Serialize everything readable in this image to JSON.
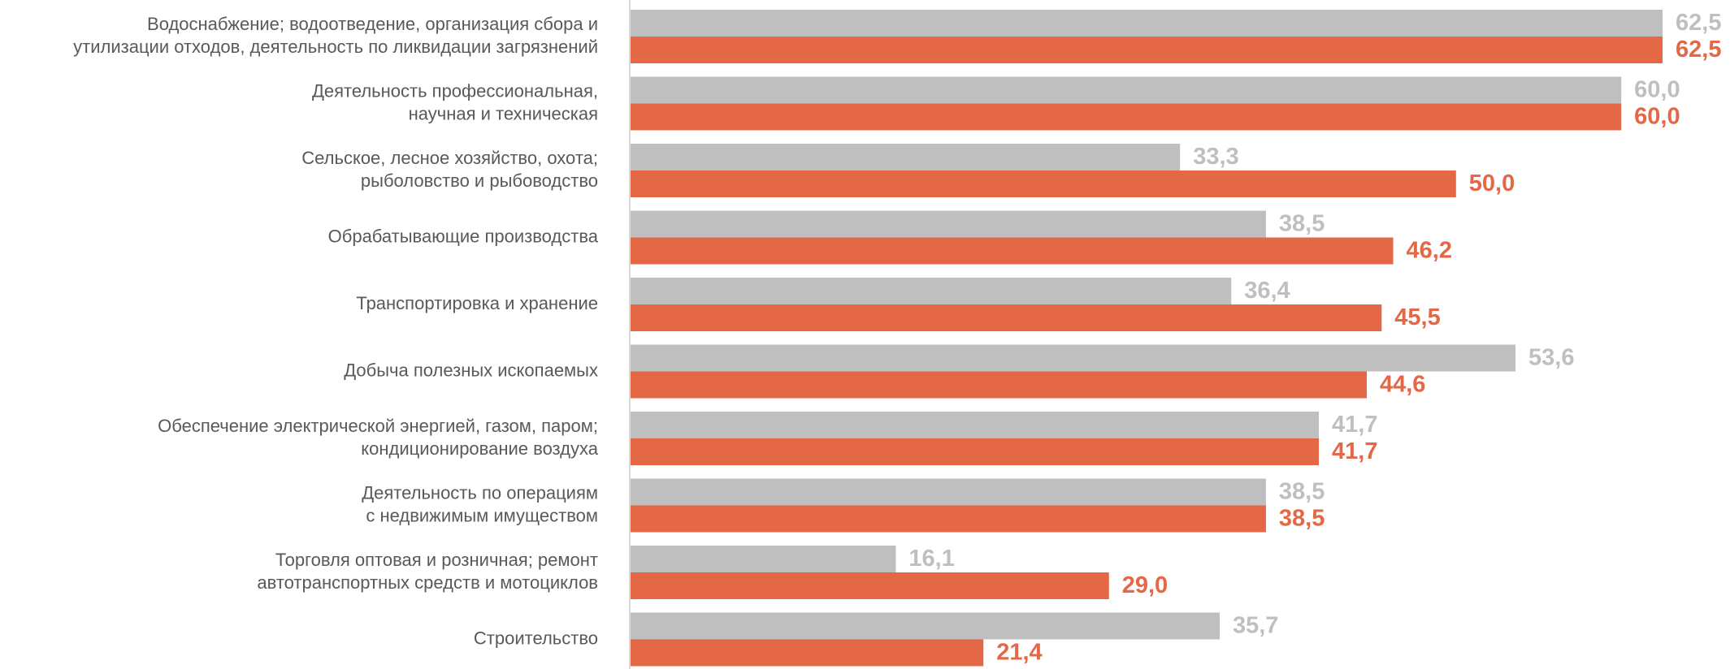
{
  "chart_data": {
    "type": "bar",
    "orientation": "horizontal",
    "categories": [
      [
        "Водоснабжение; водоотведение, организация сбора и",
        "утилизации отходов, деятельность по ликвидации загрязнений"
      ],
      [
        "Деятельность профессиональная,",
        "научная и техническая"
      ],
      [
        "Сельское, лесное хозяйство, охота;",
        "рыболовство и рыбоводство"
      ],
      [
        "Обрабатывающие производства"
      ],
      [
        "Транспортировка и хранение"
      ],
      [
        "Добыча полезных ископаемых"
      ],
      [
        "Обеспечение электрической энергией, газом, паром;",
        "кондиционирование воздуха"
      ],
      [
        "Деятельность по операциям",
        "с недвижимым имуществом"
      ],
      [
        "Торговля оптовая и розничная; ремонт",
        "автотранспортных средств и мотоциклов"
      ],
      [
        "Строительство"
      ]
    ],
    "series": [
      {
        "values": [
          62.5,
          60.0,
          33.3,
          38.5,
          36.4,
          53.6,
          41.7,
          38.5,
          16.1,
          35.7
        ],
        "labels": [
          "62,5",
          "60,0",
          "33,3",
          "38,5",
          "36,4",
          "53,6",
          "41,7",
          "38,5",
          "16,1",
          "35,7"
        ],
        "color": "#BFBFBF"
      },
      {
        "values": [
          62.5,
          60.0,
          50.0,
          46.2,
          45.5,
          44.6,
          41.7,
          38.5,
          29.0,
          21.4
        ],
        "labels": [
          "62,5",
          "60,0",
          "50,0",
          "46,2",
          "45,5",
          "44,6",
          "41,7",
          "38,5",
          "29,0",
          "21,4"
        ],
        "color": "#E46746"
      }
    ],
    "xlim": [
      0,
      62.5
    ],
    "grid": false,
    "legend": "none",
    "axis_line_color": "#D9D9D9"
  }
}
